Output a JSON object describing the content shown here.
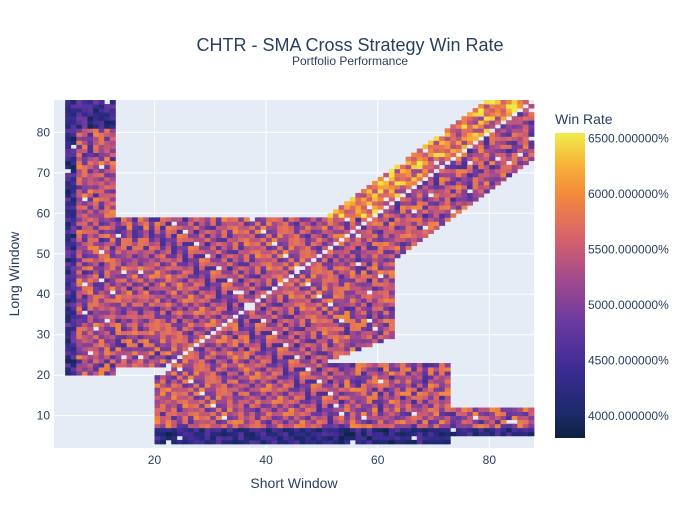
{
  "chart_data": {
    "type": "heatmap",
    "title": "CHTR - SMA Cross Strategy Win Rate",
    "subtitle": "Portfolio Performance",
    "xlabel": "Short Window",
    "ylabel": "Long Window",
    "xlim": [
      2,
      88
    ],
    "ylim": [
      2,
      88
    ],
    "x_ticks": [
      "20",
      "40",
      "60",
      "80"
    ],
    "x_tick_values": [
      20,
      40,
      60,
      80
    ],
    "y_ticks": [
      "10",
      "20",
      "30",
      "40",
      "50",
      "60",
      "70",
      "80"
    ],
    "y_tick_values": [
      10,
      20,
      30,
      40,
      50,
      60,
      70,
      80
    ],
    "grid": true,
    "colorbar": {
      "title": "Win Rate",
      "tick_labels": [
        "6500.000000%",
        "6000.000000%",
        "5500.000000%",
        "5000.000000%",
        "4500.000000%",
        "4000.000000%"
      ],
      "tick_values": [
        6500,
        6000,
        5500,
        5000,
        4500,
        4000
      ],
      "range": [
        3800,
        6550
      ],
      "colorscale": [
        "#0d0887",
        "#46039f",
        "#7201a8",
        "#9c179e",
        "#bd3786",
        "#d8576b",
        "#ed7953",
        "#fb9f3a",
        "#fdca26",
        "#f0f921"
      ]
    },
    "description": "Heatmap of win rate over a grid of short-window (x) and long-window (y) SMA parameters; dense cells concentrated in three lobes (left column x~5-12, central diagonal band, lower-right band) with a blank diagonal stripe where short equals long window."
  }
}
